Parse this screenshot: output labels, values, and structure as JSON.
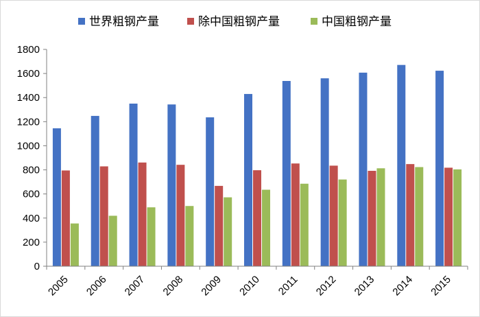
{
  "chart_data": {
    "type": "bar",
    "categories": [
      "2005",
      "2006",
      "2007",
      "2008",
      "2009",
      "2010",
      "2011",
      "2012",
      "2013",
      "2014",
      "2015"
    ],
    "series": [
      {
        "name": "世界粗钢产量",
        "color": "#4472c4",
        "values": [
          1145,
          1248,
          1350,
          1343,
          1236,
          1430,
          1538,
          1560,
          1607,
          1671,
          1623
        ]
      },
      {
        "name": "除中国粗钢产量",
        "color": "#c0504d",
        "values": [
          795,
          829,
          861,
          842,
          667,
          797,
          853,
          835,
          792,
          848,
          818
        ]
      },
      {
        "name": "中国粗钢产量",
        "color": "#9bbb59",
        "values": [
          355,
          419,
          489,
          500,
          572,
          635,
          685,
          720,
          813,
          823,
          804
        ]
      }
    ],
    "y_ticks": [
      "0",
      "200",
      "400",
      "600",
      "800",
      "1000",
      "1200",
      "1400",
      "1600",
      "1800"
    ],
    "ylim": [
      0,
      1800
    ],
    "title": "",
    "xlabel": "",
    "ylabel": "",
    "grid": false,
    "legend_position": "top"
  }
}
